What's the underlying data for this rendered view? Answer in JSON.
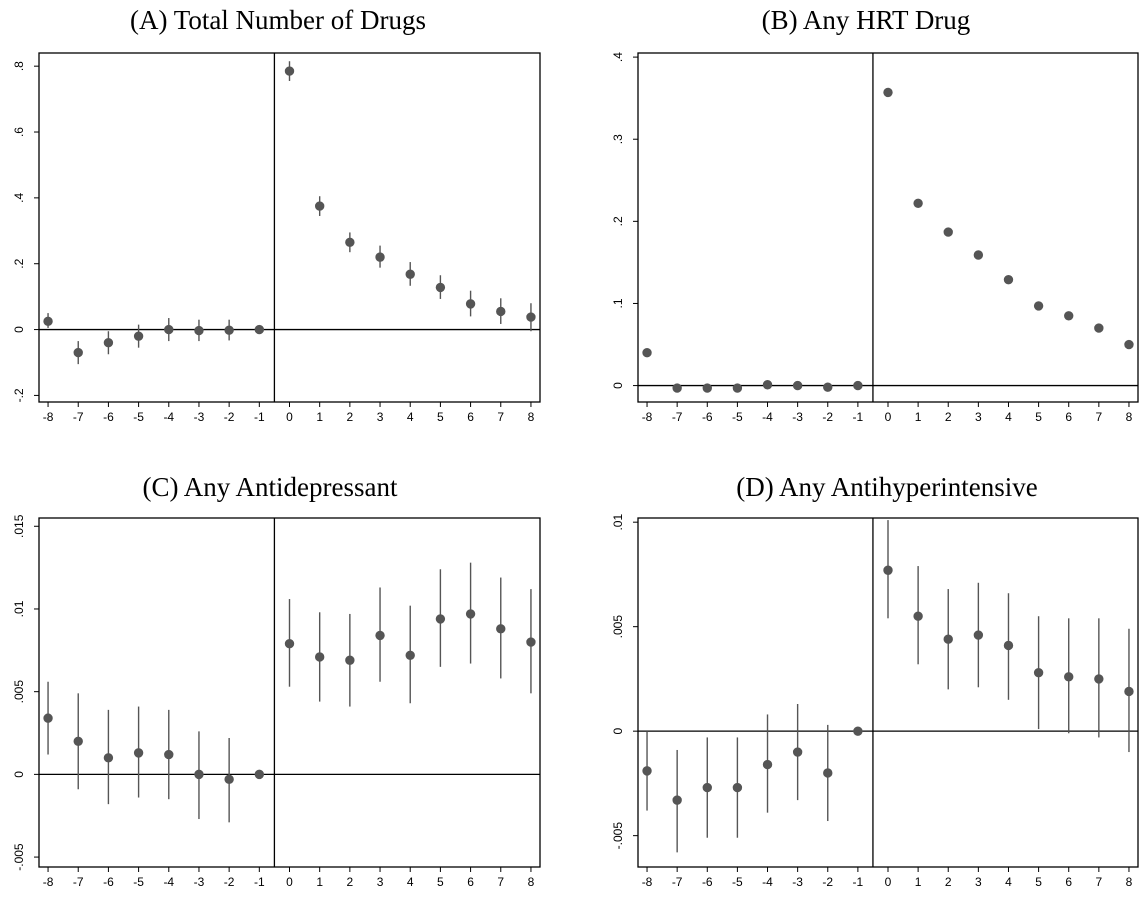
{
  "chart_data": [
    {
      "type": "scatter",
      "title": "(A) Total Number of Drugs",
      "x": [
        -8,
        -7,
        -6,
        -5,
        -4,
        -3,
        -2,
        -1,
        0,
        1,
        2,
        3,
        4,
        5,
        6,
        7,
        8
      ],
      "xlim": [
        -8.3,
        8.3
      ],
      "ylim": [
        -0.22,
        0.84
      ],
      "yticks": [
        -0.2,
        0,
        0.2,
        0.4,
        0.6,
        0.8
      ],
      "ytick_labels": [
        "-.2",
        "0",
        ".2",
        ".4",
        ".6",
        ".8"
      ],
      "series": [
        {
          "y": [
            0.025,
            -0.07,
            -0.04,
            -0.02,
            0,
            -0.003,
            -0.002,
            0,
            0.785,
            0.375,
            0.265,
            0.22,
            0.168,
            0.128,
            0.078,
            0.055,
            0.038
          ],
          "lower": [
            0.005,
            -0.105,
            -0.075,
            -0.055,
            -0.035,
            -0.035,
            -0.033,
            0,
            0.755,
            0.345,
            0.235,
            0.188,
            0.133,
            0.093,
            0.04,
            0.017,
            -0.005
          ],
          "upper": [
            0.05,
            -0.035,
            -0.005,
            0.015,
            0.035,
            0.03,
            0.03,
            0,
            0.815,
            0.405,
            0.295,
            0.255,
            0.205,
            0.165,
            0.118,
            0.095,
            0.08
          ]
        }
      ]
    },
    {
      "type": "scatter",
      "title": "(B) Any HRT Drug",
      "x": [
        -8,
        -7,
        -6,
        -5,
        -4,
        -3,
        -2,
        -1,
        0,
        1,
        2,
        3,
        4,
        5,
        6,
        7,
        8
      ],
      "xlim": [
        -8.3,
        8.3
      ],
      "ylim": [
        -0.02,
        0.405
      ],
      "yticks": [
        0,
        0.1,
        0.2,
        0.3,
        0.4
      ],
      "ytick_labels": [
        "0",
        ".1",
        ".2",
        ".3",
        ".4"
      ],
      "series": [
        {
          "y": [
            0.04,
            -0.003,
            -0.003,
            -0.003,
            0.001,
            0,
            -0.002,
            0,
            0.357,
            0.222,
            0.187,
            0.159,
            0.129,
            0.097,
            0.085,
            0.07,
            0.05
          ],
          "lower": [
            0.04,
            -0.003,
            -0.003,
            -0.003,
            0.001,
            0,
            -0.002,
            0,
            0.357,
            0.222,
            0.187,
            0.159,
            0.129,
            0.097,
            0.085,
            0.07,
            0.05
          ],
          "upper": [
            0.04,
            -0.003,
            -0.003,
            -0.003,
            0.001,
            0,
            -0.002,
            0,
            0.357,
            0.222,
            0.187,
            0.159,
            0.129,
            0.097,
            0.085,
            0.07,
            0.05
          ]
        }
      ]
    },
    {
      "type": "scatter",
      "title": "(C) Any Antidepressant",
      "x": [
        -8,
        -7,
        -6,
        -5,
        -4,
        -3,
        -2,
        -1,
        0,
        1,
        2,
        3,
        4,
        5,
        6,
        7,
        8
      ],
      "xlim": [
        -8.3,
        8.3
      ],
      "ylim": [
        -0.0056,
        0.0155
      ],
      "yticks": [
        -0.005,
        0,
        0.005,
        0.01,
        0.015
      ],
      "ytick_labels": [
        "-.005",
        "0",
        ".005",
        ".01",
        ".015"
      ],
      "series": [
        {
          "y": [
            0.0034,
            0.002,
            0.001,
            0.0013,
            0.0012,
            0,
            -0.0003,
            0,
            0.0079,
            0.0071,
            0.0069,
            0.0084,
            0.0072,
            0.0094,
            0.0097,
            0.0088,
            0.008
          ],
          "lower": [
            0.0012,
            -0.0009,
            -0.0018,
            -0.0014,
            -0.0015,
            -0.0027,
            -0.0029,
            0,
            0.0053,
            0.0044,
            0.0041,
            0.0056,
            0.0043,
            0.0065,
            0.0067,
            0.0058,
            0.0049
          ],
          "upper": [
            0.0056,
            0.0049,
            0.0039,
            0.0041,
            0.0039,
            0.0026,
            0.0022,
            0,
            0.0106,
            0.0098,
            0.0097,
            0.0113,
            0.0102,
            0.0124,
            0.0128,
            0.0119,
            0.0112
          ]
        }
      ]
    },
    {
      "type": "scatter",
      "title": "(D) Any Antihyperintensive",
      "x": [
        -8,
        -7,
        -6,
        -5,
        -4,
        -3,
        -2,
        -1,
        0,
        1,
        2,
        3,
        4,
        5,
        6,
        7,
        8
      ],
      "xlim": [
        -8.3,
        8.3
      ],
      "ylim": [
        -0.0065,
        0.0102
      ],
      "yticks": [
        -0.005,
        0,
        0.005,
        0.01
      ],
      "ytick_labels": [
        "-.005",
        "0",
        ".005",
        ".01"
      ],
      "series": [
        {
          "y": [
            -0.0019,
            -0.0033,
            -0.0027,
            -0.0027,
            -0.0016,
            -0.001,
            -0.002,
            0,
            0.0077,
            0.0055,
            0.0044,
            0.0046,
            0.0041,
            0.0028,
            0.0026,
            0.0025,
            0.0019
          ],
          "lower": [
            -0.0038,
            -0.0058,
            -0.0051,
            -0.0051,
            -0.0039,
            -0.0033,
            -0.0043,
            0,
            0.0054,
            0.0032,
            0.002,
            0.0021,
            0.0015,
            0.0001,
            -0.0001,
            -0.0003,
            -0.001
          ],
          "upper": [
            0,
            -0.0009,
            -0.0003,
            -0.0003,
            0.0008,
            0.0013,
            0.0003,
            0,
            0.0101,
            0.0079,
            0.0068,
            0.0071,
            0.0066,
            0.0055,
            0.0054,
            0.0054,
            0.0049
          ]
        }
      ]
    }
  ]
}
